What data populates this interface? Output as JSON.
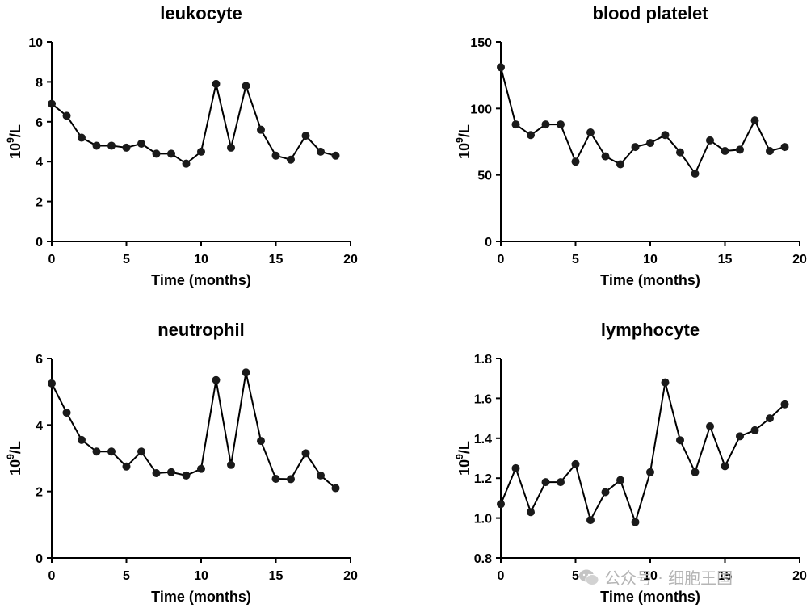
{
  "chart_data": [
    {
      "type": "line",
      "title": "leukocyte",
      "xlabel": "Time (months)",
      "ylabel_base": "10",
      "ylabel_sup": "9",
      "ylabel_unit": "/L",
      "xlim": [
        0,
        20
      ],
      "ylim": [
        0,
        10
      ],
      "xticks": [
        0,
        5,
        10,
        15,
        20
      ],
      "yticks": [
        0,
        2,
        4,
        6,
        8,
        10
      ],
      "x": [
        0,
        1,
        2,
        3,
        4,
        5,
        6,
        7,
        8,
        9,
        10,
        11,
        12,
        13,
        14,
        15,
        16,
        17,
        18,
        19
      ],
      "values": [
        6.9,
        6.3,
        5.2,
        4.8,
        4.8,
        4.7,
        4.9,
        4.4,
        4.4,
        3.9,
        4.5,
        7.9,
        4.7,
        7.8,
        5.6,
        4.3,
        4.1,
        5.3,
        4.5,
        4.3
      ]
    },
    {
      "type": "line",
      "title": "blood platelet",
      "xlabel": "Time (months)",
      "ylabel_base": "10",
      "ylabel_sup": "9",
      "ylabel_unit": "/L",
      "xlim": [
        0,
        20
      ],
      "ylim": [
        0,
        150
      ],
      "xticks": [
        0,
        5,
        10,
        15,
        20
      ],
      "yticks": [
        0,
        50,
        100,
        150
      ],
      "x": [
        0,
        1,
        2,
        3,
        4,
        5,
        6,
        7,
        8,
        9,
        10,
        11,
        12,
        13,
        14,
        15,
        16,
        17,
        18,
        19
      ],
      "values": [
        131,
        88,
        80,
        88,
        88,
        60,
        82,
        64,
        58,
        71,
        74,
        80,
        67,
        51,
        76,
        68,
        69,
        91,
        68,
        71
      ]
    },
    {
      "type": "line",
      "title": "neutrophil",
      "xlabel": "Time (months)",
      "ylabel_base": "10",
      "ylabel_sup": "9",
      "ylabel_unit": "/L",
      "xlim": [
        0,
        20
      ],
      "ylim": [
        0,
        6
      ],
      "xticks": [
        0,
        5,
        10,
        15,
        20
      ],
      "yticks": [
        0,
        2,
        4,
        6
      ],
      "x": [
        0,
        1,
        2,
        3,
        4,
        5,
        6,
        7,
        8,
        9,
        10,
        11,
        12,
        13,
        14,
        15,
        16,
        17,
        18,
        19
      ],
      "values": [
        5.25,
        4.37,
        3.55,
        3.2,
        3.2,
        2.75,
        3.2,
        2.55,
        2.58,
        2.48,
        2.68,
        5.35,
        2.8,
        5.58,
        3.52,
        2.38,
        2.37,
        3.15,
        2.48,
        2.1
      ]
    },
    {
      "type": "line",
      "title": "lymphocyte",
      "xlabel": "Time (months)",
      "ylabel_base": "10",
      "ylabel_sup": "9",
      "ylabel_unit": "/L",
      "xlim": [
        0,
        20
      ],
      "ylim": [
        0.8,
        1.8
      ],
      "xticks": [
        0,
        5,
        10,
        15,
        20
      ],
      "yticks": [
        0.8,
        1.0,
        1.2,
        1.4,
        1.6,
        1.8
      ],
      "ytick_decimals": 1,
      "x": [
        0,
        1,
        2,
        3,
        4,
        5,
        6,
        7,
        8,
        9,
        10,
        11,
        12,
        13,
        14,
        15,
        16,
        17,
        18,
        19
      ],
      "values": [
        1.07,
        1.25,
        1.03,
        1.18,
        1.18,
        1.27,
        0.99,
        1.13,
        1.19,
        0.98,
        1.23,
        1.68,
        1.39,
        1.23,
        1.46,
        1.26,
        1.41,
        1.44,
        1.5,
        1.57
      ]
    }
  ],
  "watermark": {
    "text": "公众号 · 细胞王国",
    "icon": "wechat-icon"
  },
  "colors": {
    "line": "#000000",
    "marker": "#1a1a1a",
    "watermark": "#b5b5b5"
  }
}
